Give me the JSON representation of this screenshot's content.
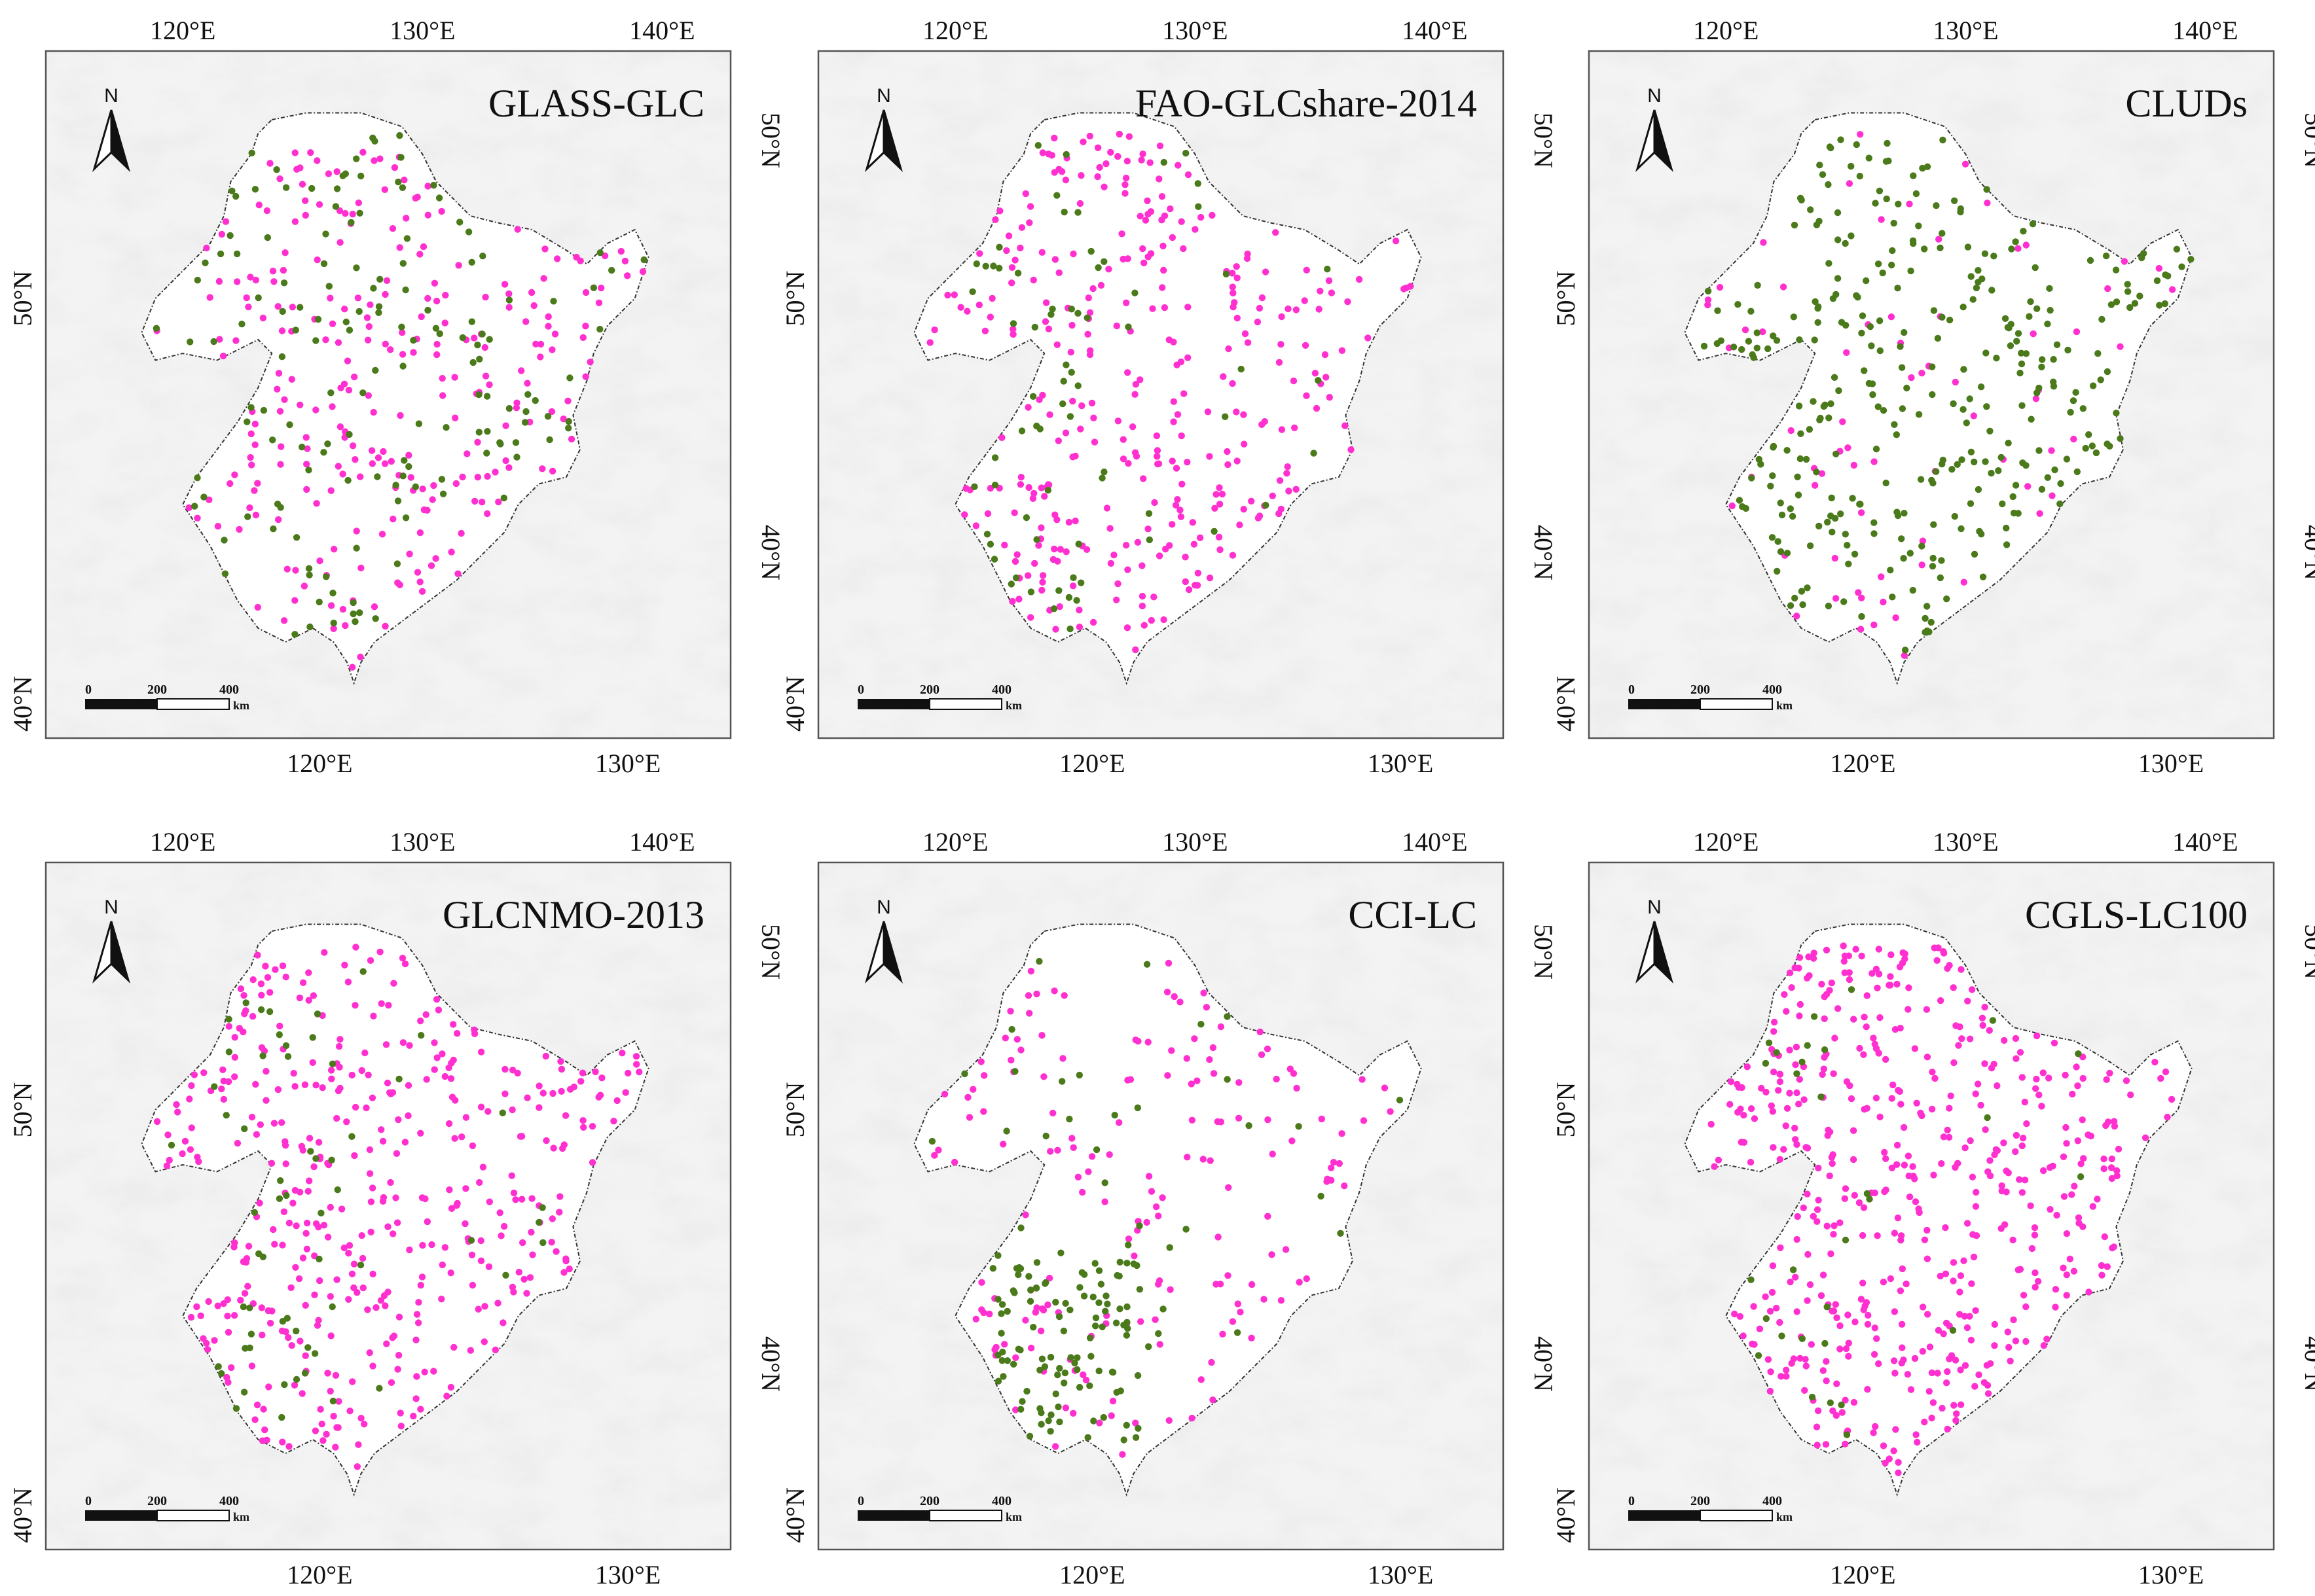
{
  "figure": {
    "panels": [
      {
        "title": "GLASS-GLC",
        "seed": 11,
        "pink": 260,
        "green": 150,
        "greenBias": "mixed"
      },
      {
        "title": "FAO-GLCshare-2014",
        "seed": 23,
        "pink": 330,
        "green": 70,
        "greenBias": "west"
      },
      {
        "title": "CLUDs",
        "seed": 37,
        "pink": 70,
        "green": 330,
        "greenBias": "mixed"
      },
      {
        "title": "GLCNMO-2013",
        "seed": 41,
        "pink": 420,
        "green": 60,
        "greenBias": "west"
      },
      {
        "title": "CCI-LC",
        "seed": 53,
        "pink": 170,
        "green": 140,
        "greenBias": "southwest"
      },
      {
        "title": "CGLS-LC100",
        "seed": 67,
        "pink": 520,
        "green": 30,
        "greenBias": "west"
      }
    ],
    "axes": {
      "top_ticks": [
        "120°E",
        "130°E",
        "140°E"
      ],
      "bottom_ticks": [
        "120°E",
        "130°E"
      ],
      "left_ticks": [
        "40°N",
        "50°N"
      ],
      "right_ticks": [
        "40°N",
        "50°N"
      ]
    },
    "north_arrow_label": "N",
    "scale_bar": {
      "labels": [
        "0",
        "200",
        "400"
      ],
      "unit": "km"
    },
    "colors": {
      "pink": "#ff2fd0",
      "green": "#4a7a1a",
      "outline": "#333333",
      "frame": "#555555"
    }
  }
}
